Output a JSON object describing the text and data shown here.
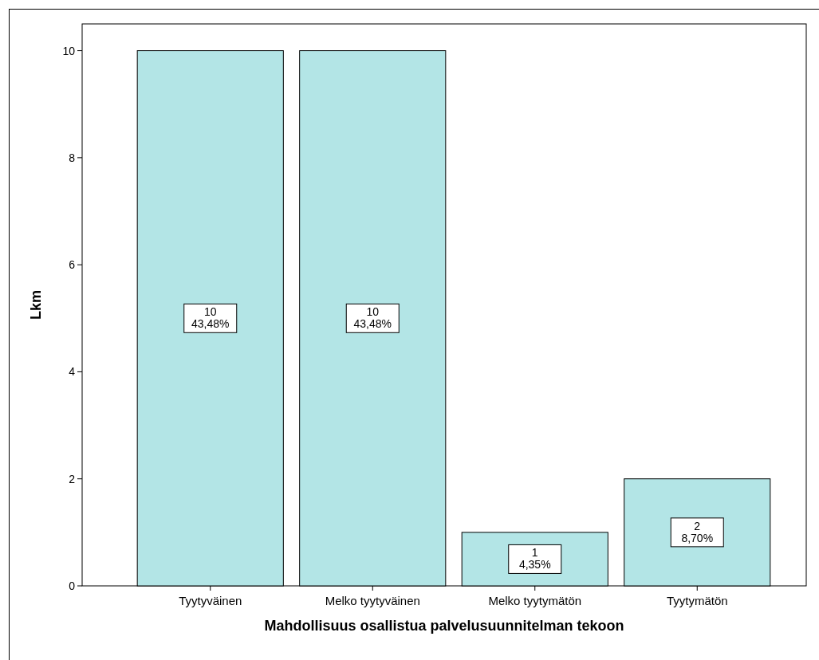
{
  "chart_data": {
    "type": "bar",
    "xlabel": "Mahdollisuus osallistua palvelusuunnitelman tekoon",
    "ylabel": "Lkm",
    "categories": [
      "Tyytyväinen",
      "Melko tyytyväinen",
      "Melko tyytymätön",
      "Tyytymätön"
    ],
    "values": [
      10,
      10,
      1,
      2
    ],
    "color": "#b3e5e6",
    "value_labels": [
      "10\n43,48%",
      "10\n43,48%",
      "1\n4,35%",
      "2\n8,70%"
    ],
    "ylim": [
      0,
      10.5
    ],
    "yticks": [
      0,
      2,
      4,
      6,
      8,
      10
    ],
    "grid": false
  }
}
